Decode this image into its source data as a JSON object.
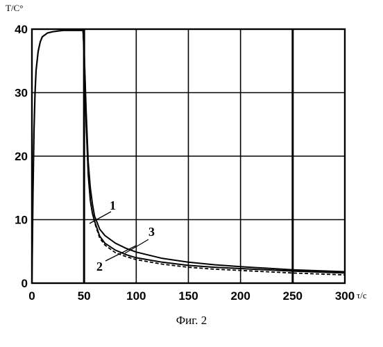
{
  "caption": "Фиг. 2",
  "chart_data": {
    "type": "line",
    "xlabel": "τ/c",
    "ylabel": "T/C°",
    "xlim": [
      0,
      300
    ],
    "ylim": [
      0,
      40
    ],
    "xticks": [
      0,
      50,
      100,
      150,
      200,
      250,
      300
    ],
    "yticks": [
      0,
      10,
      20,
      30,
      40
    ],
    "x_tick_labels": [
      "0",
      "50",
      "100",
      "150",
      "200",
      "250",
      "300"
    ],
    "y_tick_labels": [
      "0",
      "10",
      "20",
      "30",
      "40"
    ],
    "grid": true,
    "heating": {
      "x": [
        0,
        1,
        2,
        3,
        4,
        6,
        8,
        10,
        15,
        20,
        25,
        30,
        35,
        40,
        45,
        48,
        49
      ],
      "y": [
        0,
        14,
        24,
        30,
        33.5,
        36.5,
        38,
        38.8,
        39.4,
        39.6,
        39.7,
        39.8,
        39.8,
        39.8,
        39.8,
        39.8,
        39.8
      ]
    },
    "series": [
      {
        "name": "1",
        "style": "solid",
        "x": [
          49,
          50,
          52,
          54,
          56,
          58,
          60,
          65,
          70,
          80,
          90,
          100,
          125,
          150,
          175,
          200,
          250,
          300
        ],
        "y": [
          39.8,
          37,
          27,
          19,
          15,
          12.5,
          10.6,
          8.5,
          7.5,
          6.3,
          5.5,
          4.9,
          3.9,
          3.3,
          2.9,
          2.6,
          2.1,
          1.8
        ]
      },
      {
        "name": "2",
        "style": "solid",
        "x": [
          49,
          50,
          52,
          54,
          56,
          58,
          60,
          65,
          70,
          80,
          90,
          100,
          125,
          150,
          175,
          200,
          250,
          300
        ],
        "y": [
          39.8,
          36,
          25,
          17,
          13,
          11,
          9.8,
          7.4,
          6.3,
          5.2,
          4.5,
          4.0,
          3.3,
          2.8,
          2.5,
          2.3,
          1.9,
          1.6
        ]
      },
      {
        "name": "3",
        "style": "dashed",
        "x": [
          49,
          50,
          52,
          54,
          56,
          58,
          60,
          65,
          70,
          80,
          90,
          100,
          125,
          150,
          175,
          200,
          250,
          300
        ],
        "y": [
          39.8,
          36,
          25,
          17,
          13,
          11,
          9.6,
          7.1,
          6.0,
          4.8,
          4.2,
          3.7,
          3.0,
          2.5,
          2.2,
          2.0,
          1.6,
          1.3
        ]
      }
    ]
  }
}
